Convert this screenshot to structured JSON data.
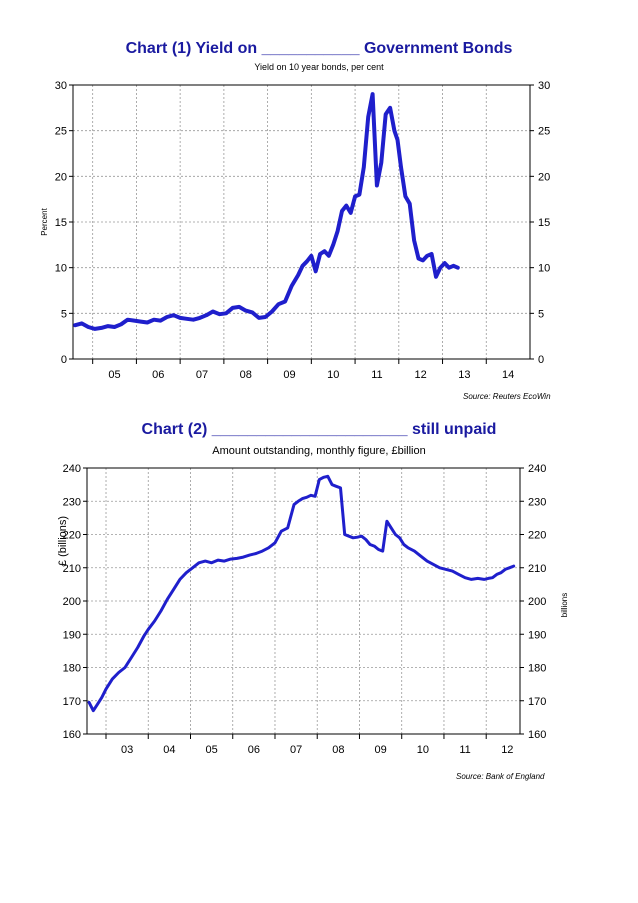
{
  "chart_data": [
    {
      "type": "line",
      "title": "Chart (1) Yield on ___________ Government Bonds",
      "subtitle": "Yield on 10 year bonds, per cent",
      "ylabel": "Percent",
      "source": "Source: Reuters EcoWin",
      "ylim": [
        0,
        30
      ],
      "yticks": [
        "0",
        "5",
        "10",
        "15",
        "20",
        "25",
        "30"
      ],
      "xlim": [
        2004.55,
        2015.0
      ],
      "xtick_labels": [
        "05",
        "06",
        "07",
        "08",
        "09",
        "10",
        "11",
        "12",
        "13",
        "14"
      ],
      "grid": true,
      "line_color": "#1f1fcc",
      "series": [
        {
          "x": [
            2004.6,
            2004.75,
            2004.9,
            2005.05,
            2005.2,
            2005.35,
            2005.5,
            2005.65,
            2005.8,
            2005.95,
            2006.1,
            2006.25,
            2006.4,
            2006.55,
            2006.7,
            2006.85,
            2007.0,
            2007.15,
            2007.3,
            2007.45,
            2007.6,
            2007.75,
            2007.9,
            2008.05,
            2008.2,
            2008.35,
            2008.5,
            2008.65,
            2008.8,
            2008.95,
            2009.1,
            2009.25,
            2009.4,
            2009.55,
            2009.7,
            2009.8,
            2009.9,
            2010.0,
            2010.1,
            2010.2,
            2010.3,
            2010.4,
            2010.5,
            2010.6,
            2010.7,
            2010.8,
            2010.9,
            2011.0,
            2011.1,
            2011.2,
            2011.3,
            2011.4,
            2011.5,
            2011.6,
            2011.7,
            2011.8,
            2011.9,
            2011.97,
            2012.05,
            2012.15,
            2012.25,
            2012.35,
            2012.45,
            2012.55,
            2012.65,
            2012.75,
            2012.85,
            2012.95,
            2013.05,
            2013.15,
            2013.25,
            2013.35
          ],
          "y": [
            3.7,
            3.9,
            3.5,
            3.3,
            3.4,
            3.6,
            3.5,
            3.8,
            4.3,
            4.2,
            4.1,
            4.0,
            4.3,
            4.2,
            4.6,
            4.8,
            4.5,
            4.4,
            4.3,
            4.5,
            4.8,
            5.2,
            4.9,
            5.0,
            5.6,
            5.7,
            5.3,
            5.1,
            4.5,
            4.6,
            5.2,
            6.0,
            6.3,
            8.0,
            9.2,
            10.2,
            10.7,
            11.3,
            9.6,
            11.5,
            11.8,
            11.3,
            12.5,
            14.0,
            16.2,
            16.8,
            16.0,
            17.8,
            18.0,
            21.0,
            26.5,
            29.0,
            19.0,
            21.5,
            26.8,
            27.5,
            25.0,
            24.0,
            21.0,
            17.8,
            17.0,
            13.0,
            11.0,
            10.8,
            11.3,
            11.5,
            9.0,
            10.0,
            10.5,
            10.0,
            10.2,
            10.0
          ]
        }
      ]
    },
    {
      "type": "line",
      "title": "Chart (2) ______________________ still unpaid",
      "subtitle": "Amount outstanding, monthly figure, £billion",
      "ylabel": "£ (billions)",
      "ylabel_right": "billions",
      "source": "Source: Bank of England",
      "ylim": [
        160,
        240
      ],
      "yticks": [
        "160",
        "170",
        "180",
        "190",
        "200",
        "210",
        "220",
        "230",
        "240"
      ],
      "xlim": [
        2002.55,
        2012.8
      ],
      "xtick_labels": [
        "03",
        "04",
        "05",
        "06",
        "07",
        "08",
        "09",
        "10",
        "11",
        "12"
      ],
      "grid": true,
      "line_color": "#1f1fcc",
      "series": [
        {
          "x": [
            2002.6,
            2002.7,
            2002.8,
            2002.9,
            2003.0,
            2003.15,
            2003.3,
            2003.45,
            2003.6,
            2003.75,
            2003.9,
            2004.0,
            2004.15,
            2004.3,
            2004.45,
            2004.6,
            2004.75,
            2004.9,
            2005.05,
            2005.2,
            2005.35,
            2005.5,
            2005.65,
            2005.8,
            2005.95,
            2006.1,
            2006.25,
            2006.4,
            2006.55,
            2006.7,
            2006.85,
            2007.0,
            2007.15,
            2007.3,
            2007.45,
            2007.55,
            2007.65,
            2007.75,
            2007.85,
            2007.95,
            2008.05,
            2008.15,
            2008.25,
            2008.35,
            2008.45,
            2008.55,
            2008.65,
            2008.75,
            2008.85,
            2008.95,
            2009.05,
            2009.15,
            2009.25,
            2009.35,
            2009.45,
            2009.55,
            2009.65,
            2009.75,
            2009.85,
            2009.95,
            2010.05,
            2010.15,
            2010.3,
            2010.45,
            2010.6,
            2010.75,
            2010.9,
            2011.05,
            2011.2,
            2011.35,
            2011.5,
            2011.65,
            2011.8,
            2011.95,
            2012.05,
            2012.15,
            2012.25,
            2012.35,
            2012.45,
            2012.55,
            2012.65
          ],
          "y": [
            169.5,
            167.0,
            169.0,
            171.0,
            173.5,
            176.5,
            178.5,
            180.0,
            183.0,
            186.0,
            189.5,
            191.5,
            194.0,
            197.0,
            200.5,
            203.5,
            206.5,
            208.5,
            210.0,
            211.5,
            212.0,
            211.5,
            212.3,
            212.0,
            212.6,
            212.8,
            213.2,
            213.8,
            214.3,
            215.0,
            216.0,
            217.5,
            221.0,
            222.0,
            229.0,
            230.0,
            230.8,
            231.2,
            231.8,
            231.5,
            236.5,
            237.2,
            237.5,
            235.0,
            234.5,
            234.0,
            220.0,
            219.5,
            219.0,
            219.2,
            219.5,
            218.5,
            217.0,
            216.5,
            215.5,
            215.0,
            224.0,
            222.0,
            220.0,
            219.0,
            217.0,
            216.0,
            215.0,
            213.5,
            212.0,
            211.0,
            210.0,
            209.5,
            209.0,
            208.0,
            207.0,
            206.5,
            206.8,
            206.5,
            206.8,
            207.0,
            208.0,
            208.5,
            209.5,
            210.0,
            210.5
          ]
        }
      ]
    }
  ]
}
